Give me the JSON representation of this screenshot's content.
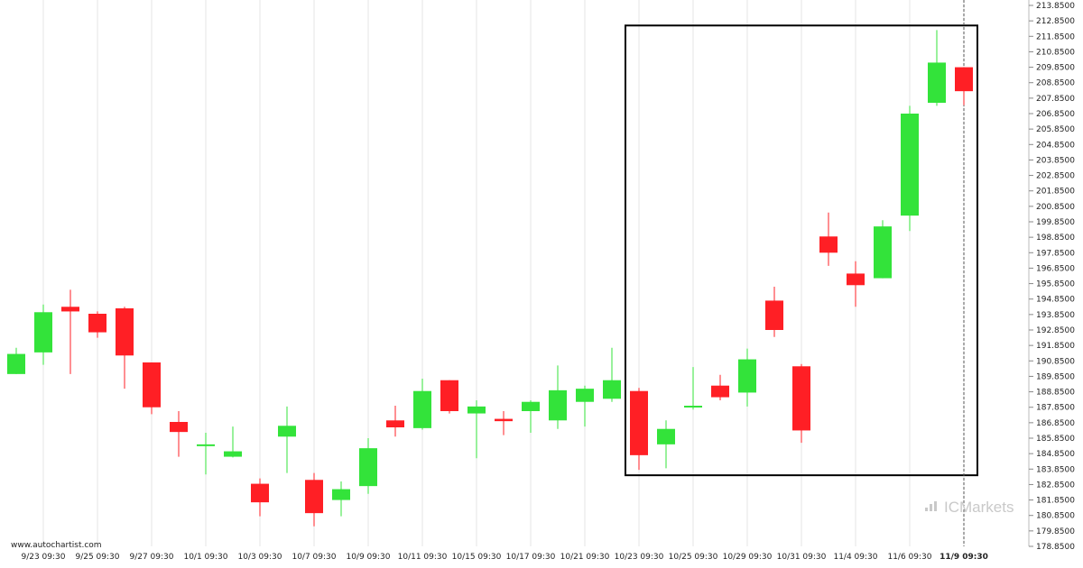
{
  "source": "www.autochartist.com",
  "watermark": "ICMarkets",
  "colors": {
    "up": "#33e33a",
    "down": "#ff1f25",
    "wick": "#222222",
    "grid": "#e6e6e6",
    "box": "#000000",
    "current_line": "#555555"
  },
  "chart_data": {
    "type": "candlestick",
    "x_labels": [
      "9/23 09:30",
      "9/25 09:30",
      "9/27 09:30",
      "10/1 09:30",
      "10/3 09:30",
      "10/7 09:30",
      "10/9 09:30",
      "10/11 09:30",
      "10/15 09:30",
      "10/17 09:30",
      "10/21 09:30",
      "10/23 09:30",
      "10/25 09:30",
      "10/29 09:30",
      "10/31 09:30",
      "11/4 09:30",
      "11/6 09:30",
      "11/9 09:30"
    ],
    "x_label_index": [
      1,
      3,
      5,
      7,
      9,
      11,
      13,
      15,
      17,
      19,
      21,
      23,
      25,
      27,
      29,
      31,
      33,
      35
    ],
    "highlighted_x_label": "11/9 09:30",
    "y_ticks": [
      "213.8500",
      "212.8500",
      "211.8500",
      "210.8500",
      "209.8500",
      "208.8500",
      "207.8500",
      "206.8500",
      "205.8500",
      "204.8500",
      "203.8500",
      "202.8500",
      "201.8500",
      "200.8500",
      "199.8500",
      "198.8500",
      "197.8500",
      "196.8500",
      "195.8500",
      "194.8500",
      "193.8500",
      "192.8500",
      "191.8500",
      "190.8500",
      "189.8500",
      "188.8500",
      "187.8500",
      "186.8500",
      "185.8500",
      "184.8500",
      "183.8500",
      "182.8500",
      "181.8500",
      "180.8500",
      "179.8500",
      "178.8500"
    ],
    "ylim": [
      178.85,
      213.85
    ],
    "grid": "vertical",
    "candles": [
      {
        "o": 190.0,
        "h": 191.7,
        "l": 190.0,
        "c": 191.3
      },
      {
        "o": 191.4,
        "h": 194.5,
        "l": 190.6,
        "c": 194.0
      },
      {
        "o": 194.35,
        "h": 195.45,
        "l": 190.0,
        "c": 194.05
      },
      {
        "o": 193.9,
        "h": 194.05,
        "l": 192.35,
        "c": 192.7
      },
      {
        "o": 194.25,
        "h": 194.35,
        "l": 189.05,
        "c": 191.2
      },
      {
        "o": 190.75,
        "h": 190.75,
        "l": 187.4,
        "c": 187.85
      },
      {
        "o": 186.9,
        "h": 187.6,
        "l": 184.65,
        "c": 186.25
      },
      {
        "o": 185.35,
        "h": 186.2,
        "l": 183.5,
        "c": 185.45
      },
      {
        "o": 184.65,
        "h": 186.6,
        "l": 184.6,
        "c": 185.0
      },
      {
        "o": 182.9,
        "h": 183.25,
        "l": 180.8,
        "c": 181.7
      },
      {
        "o": 185.95,
        "h": 187.9,
        "l": 183.6,
        "c": 186.65
      },
      {
        "o": 183.15,
        "h": 183.6,
        "l": 180.15,
        "c": 181.0
      },
      {
        "o": 181.85,
        "h": 183.05,
        "l": 180.8,
        "c": 182.55
      },
      {
        "o": 182.75,
        "h": 185.85,
        "l": 182.25,
        "c": 185.2
      },
      {
        "o": 187.0,
        "h": 187.95,
        "l": 185.95,
        "c": 186.55
      },
      {
        "o": 186.5,
        "h": 189.7,
        "l": 186.4,
        "c": 188.9
      },
      {
        "o": 189.6,
        "h": 189.6,
        "l": 187.45,
        "c": 187.6
      },
      {
        "o": 187.45,
        "h": 188.3,
        "l": 184.55,
        "c": 187.9
      },
      {
        "o": 187.1,
        "h": 187.6,
        "l": 186.05,
        "c": 186.95
      },
      {
        "o": 187.6,
        "h": 188.3,
        "l": 186.2,
        "c": 188.2
      },
      {
        "o": 187.0,
        "h": 190.55,
        "l": 186.45,
        "c": 188.95
      },
      {
        "o": 188.2,
        "h": 189.25,
        "l": 186.6,
        "c": 189.05
      },
      {
        "o": 188.4,
        "h": 191.7,
        "l": 188.2,
        "c": 189.6
      },
      {
        "o": 188.9,
        "h": 189.1,
        "l": 183.8,
        "c": 184.75
      },
      {
        "o": 185.45,
        "h": 187.0,
        "l": 183.9,
        "c": 186.45
      },
      {
        "o": 187.9,
        "h": 190.45,
        "l": 187.7,
        "c": 187.95
      },
      {
        "o": 189.25,
        "h": 189.95,
        "l": 188.3,
        "c": 188.5
      },
      {
        "o": 188.8,
        "h": 191.65,
        "l": 187.9,
        "c": 190.95
      },
      {
        "o": 194.75,
        "h": 195.65,
        "l": 192.4,
        "c": 192.85
      },
      {
        "o": 190.5,
        "h": 190.65,
        "l": 185.55,
        "c": 186.35
      },
      {
        "o": 198.9,
        "h": 200.45,
        "l": 197.0,
        "c": 197.85
      },
      {
        "o": 196.5,
        "h": 197.3,
        "l": 194.35,
        "c": 195.75
      },
      {
        "o": 196.2,
        "h": 199.95,
        "l": 196.2,
        "c": 199.55
      },
      {
        "o": 200.25,
        "h": 207.35,
        "l": 199.25,
        "c": 206.85
      },
      {
        "o": 207.55,
        "h": 212.25,
        "l": 207.35,
        "c": 210.15
      },
      {
        "o": 209.85,
        "h": 209.85,
        "l": 207.4,
        "c": 208.3
      }
    ],
    "highlight_box": {
      "from_index": 23,
      "to_index": 35,
      "low": 183.45,
      "high": 212.55
    }
  }
}
